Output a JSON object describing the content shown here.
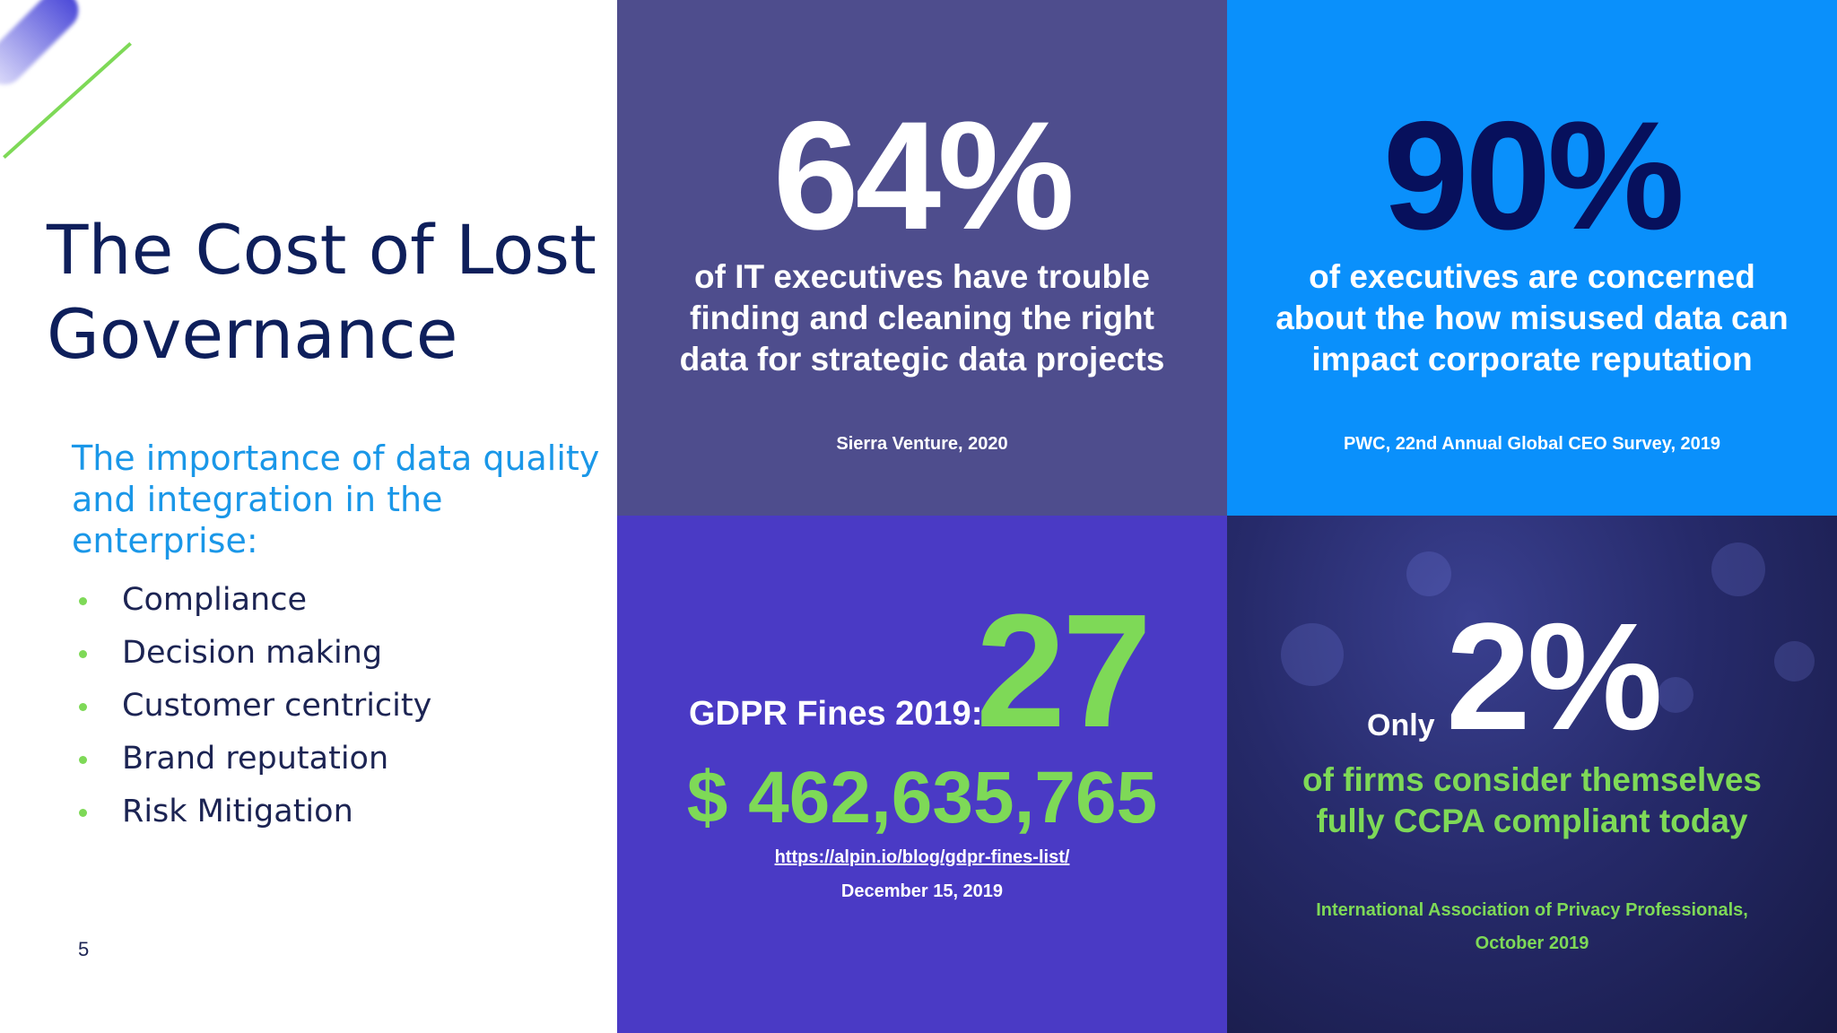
{
  "slide": {
    "title_line1": "The Cost of Lost",
    "title_line2": "Governance",
    "subtitle_line1": "The importance of data quality",
    "subtitle_line2": "and integration in the enterprise:",
    "bullets": [
      "Compliance",
      "Decision making",
      "Customer centricity",
      "Brand reputation",
      "Risk Mitigation"
    ],
    "page_number": "5"
  },
  "stats": {
    "it_execs": {
      "value": "64%",
      "text": "of IT executives have trouble finding and cleaning the right data for strategic data projects",
      "source": "Sierra Venture, 2020"
    },
    "execs": {
      "value": "90%",
      "text": "of executives are concerned about the how misused data can impact corporate reputation",
      "source": "PWC, 22nd Annual Global CEO Survey, 2019"
    },
    "gdpr": {
      "label": "GDPR Fines 2019:",
      "count": "27",
      "amount": "$ 462,635,765",
      "link": "https://alpin.io/blog/gdpr-fines-list/",
      "date": "December 15, 2019"
    },
    "ccpa": {
      "prefix": "Only",
      "value": "2%",
      "text": "of firms consider themselves fully CCPA compliant today",
      "source_line1": "International Association of Privacy Professionals,",
      "source_line2": "October 2019"
    }
  },
  "colors": {
    "title": "#0e1f5b",
    "subtitle": "#1a97e8",
    "accent_green": "#7ed957",
    "panel_purple_gray": "#4e4d8d",
    "panel_blue": "#0a90fb",
    "panel_violet": "#4a3ac5",
    "panel_navy": "#262a6a"
  }
}
